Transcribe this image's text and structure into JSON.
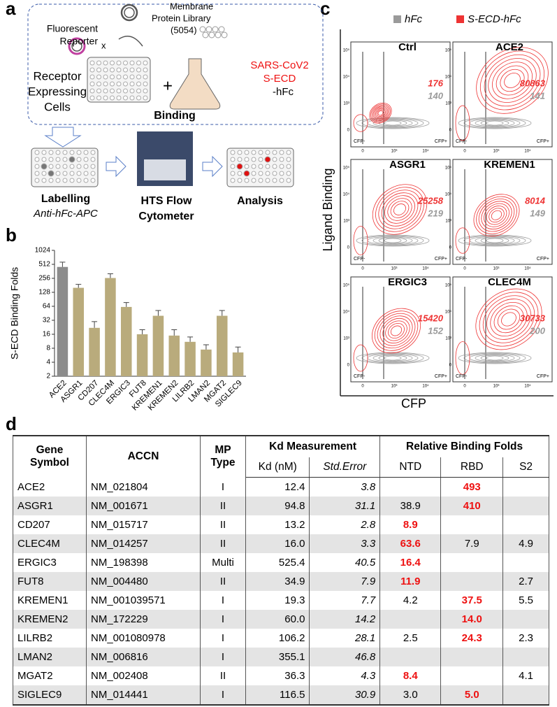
{
  "panel_labels": [
    "a",
    "b",
    "c",
    "d"
  ],
  "panel_a": {
    "reporter": [
      "Fluorescent",
      "Reporter"
    ],
    "library": [
      "Membrane",
      "Protein Library",
      "(5054)"
    ],
    "cross": "x",
    "cells": [
      "Receptor",
      "Expressing",
      "Cells"
    ],
    "plus": "+",
    "ligand": [
      "SARS-CoV2",
      "S-ECD"
    ],
    "ligand_tag": "-hFc",
    "binding": "Binding",
    "steps": [
      {
        "title": "Labelling",
        "subtitle": "Anti-hFc-APC"
      },
      {
        "title": [
          "HTS Flow",
          "Cytometer"
        ]
      },
      {
        "title": "Analysis"
      }
    ]
  },
  "chart_data": {
    "type": "bar",
    "y_label": "S-ECD Binding Folds",
    "categories": [
      "ACE2",
      "ASGR1",
      "CD207",
      "CLEC4M",
      "ERGIC3",
      "FUT8",
      "KREMEN1",
      "KREMEN2",
      "LILRB2",
      "LMAN2",
      "MGAT2",
      "SIGLEC9"
    ],
    "values": [
      450,
      160,
      22,
      260,
      62,
      16,
      40,
      15,
      11,
      7.5,
      40,
      6.5
    ],
    "errors": [
      120,
      30,
      8,
      60,
      15,
      4,
      12,
      5,
      3,
      2,
      12,
      2
    ],
    "colors": [
      "#8c8c8c",
      "#b9ab7c",
      "#b9ab7c",
      "#b9ab7c",
      "#b9ab7c",
      "#b9ab7c",
      "#b9ab7c",
      "#b9ab7c",
      "#b9ab7c",
      "#b9ab7c",
      "#b9ab7c",
      "#b9ab7c"
    ],
    "log_base": 2,
    "ylim": [
      2,
      1024
    ],
    "yticks": [
      2,
      4,
      8,
      16,
      32,
      64,
      128,
      256,
      512,
      1024
    ]
  },
  "panel_c": {
    "legend": [
      {
        "name": "hFc",
        "color": "#9a9a9a"
      },
      {
        "name": "S-ECD-hFc",
        "color": "#ee3333"
      }
    ],
    "y_label": "Ligand Binding",
    "x_label": "CFP",
    "gates": [
      "CFP-",
      "CFP+"
    ],
    "yticks": [
      "0",
      "10³",
      "10⁴",
      "10⁵"
    ],
    "xticks": [
      "0",
      "10³",
      "10⁴"
    ],
    "plots": [
      {
        "title": "Ctrl",
        "values": [
          "176",
          "140"
        ],
        "signal": 0.15
      },
      {
        "title": "ACE2",
        "values": [
          "80863",
          "141"
        ],
        "signal": 1
      },
      {
        "title": "ASGR1",
        "values": [
          "25258",
          "219"
        ],
        "signal": 0.7
      },
      {
        "title": "KREMEN1",
        "values": [
          "8014",
          "149"
        ],
        "signal": 0.55
      },
      {
        "title": "ERGIC3",
        "values": [
          "15420",
          "152"
        ],
        "signal": 0.6
      },
      {
        "title": "CLEC4M",
        "values": [
          "30733",
          "200"
        ],
        "signal": 0.9
      }
    ]
  },
  "table": {
    "header_top": [
      "Gene Symbol",
      "ACCN",
      "MP Type",
      "Kd Measurement",
      "Relative Binding Folds"
    ],
    "header_sub": [
      "Kd (nM)",
      "Std.Error",
      "NTD",
      "RBD",
      "S2"
    ],
    "rows": [
      [
        "ACE2",
        "NM_021804",
        "I",
        "12.4",
        "3.8",
        null,
        "493",
        null
      ],
      [
        "ASGR1",
        "NM_001671",
        "II",
        "94.8",
        "31.1",
        "38.9",
        "410",
        null
      ],
      [
        "CD207",
        "NM_015717",
        "II",
        "13.2",
        "2.8",
        "8.9",
        null,
        null
      ],
      [
        "CLEC4M",
        "NM_014257",
        "II",
        "16.0",
        "3.3",
        "63.6",
        "7.9",
        "4.9"
      ],
      [
        "ERGIC3",
        "NM_198398",
        "Multi",
        "525.4",
        "40.5",
        "16.4",
        null,
        null
      ],
      [
        "FUT8",
        "NM_004480",
        "II",
        "34.9",
        "7.9",
        "11.9",
        null,
        "2.7"
      ],
      [
        "KREMEN1",
        "NM_001039571",
        "I",
        "19.3",
        "7.7",
        "4.2",
        "37.5",
        "5.5"
      ],
      [
        "KREMEN2",
        "NM_172229",
        "I",
        "60.0",
        "14.2",
        null,
        "14.0",
        null
      ],
      [
        "LILRB2",
        "NM_001080978",
        "I",
        "106.2",
        "28.1",
        "2.5",
        "24.3",
        "2.3"
      ],
      [
        "LMAN2",
        "NM_006816",
        "I",
        "355.1",
        "46.8",
        null,
        null,
        null
      ],
      [
        "MGAT2",
        "NM_002408",
        "II",
        "36.3",
        "4.3",
        "8.4",
        null,
        "4.1"
      ],
      [
        "SIGLEC9",
        "NM_014441",
        "I",
        "116.5",
        "30.9",
        "3.0",
        "5.0",
        null
      ]
    ],
    "emphasis": [
      [
        6
      ],
      [
        6
      ],
      [
        5
      ],
      [
        5
      ],
      [
        5
      ],
      [
        5
      ],
      [
        6
      ],
      [
        6
      ],
      [
        6
      ],
      [],
      [
        5
      ],
      [
        6
      ]
    ],
    "emphasis_color": "#ee1111"
  }
}
